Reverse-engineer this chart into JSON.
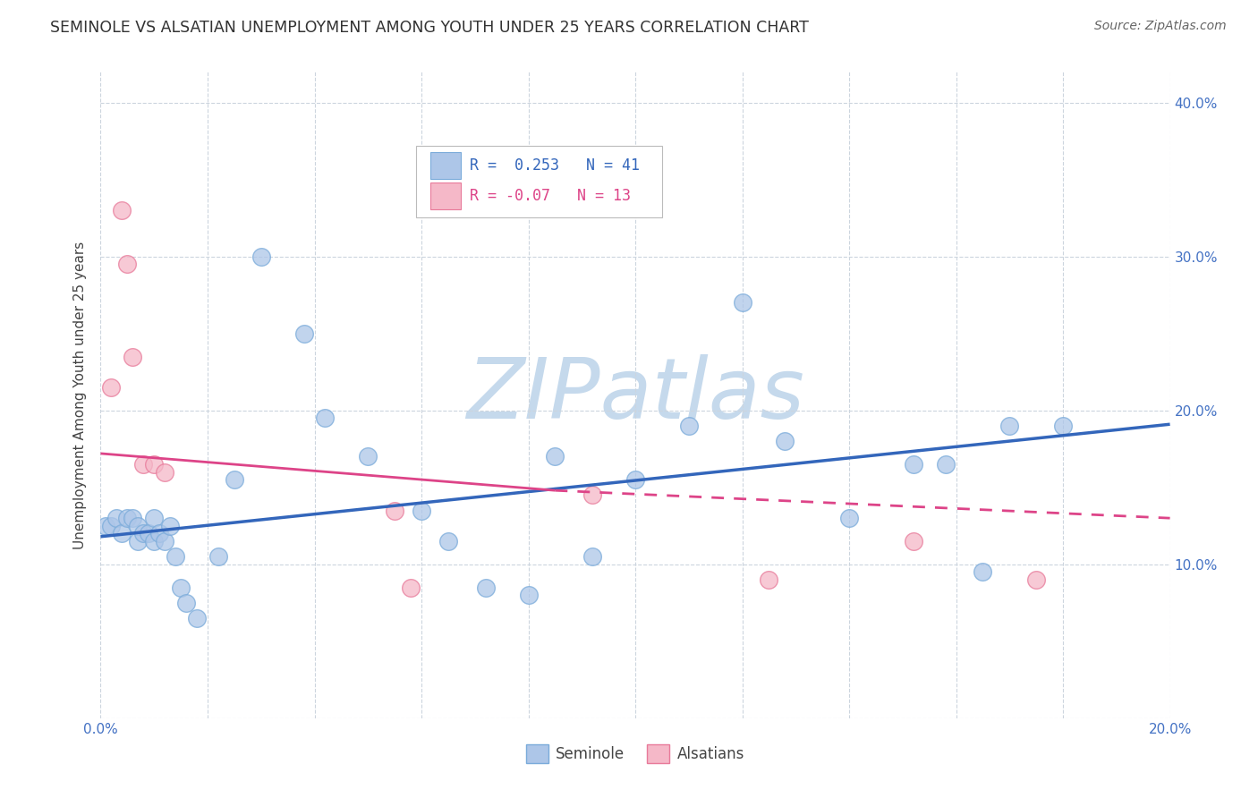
{
  "title": "SEMINOLE VS ALSATIAN UNEMPLOYMENT AMONG YOUTH UNDER 25 YEARS CORRELATION CHART",
  "source": "Source: ZipAtlas.com",
  "ylabel": "Unemployment Among Youth under 25 years",
  "xlim": [
    0.0,
    0.2
  ],
  "ylim": [
    0.0,
    0.42
  ],
  "xticks": [
    0.0,
    0.02,
    0.04,
    0.06,
    0.08,
    0.1,
    0.12,
    0.14,
    0.16,
    0.18,
    0.2
  ],
  "yticks": [
    0.0,
    0.1,
    0.2,
    0.3,
    0.4
  ],
  "seminole_x": [
    0.001,
    0.002,
    0.003,
    0.004,
    0.005,
    0.006,
    0.007,
    0.007,
    0.008,
    0.009,
    0.01,
    0.01,
    0.011,
    0.012,
    0.013,
    0.014,
    0.015,
    0.016,
    0.018,
    0.022,
    0.025,
    0.03,
    0.038,
    0.042,
    0.05,
    0.06,
    0.065,
    0.072,
    0.08,
    0.085,
    0.092,
    0.1,
    0.11,
    0.12,
    0.128,
    0.14,
    0.152,
    0.158,
    0.165,
    0.17,
    0.18
  ],
  "seminole_y": [
    0.125,
    0.125,
    0.13,
    0.12,
    0.13,
    0.13,
    0.115,
    0.125,
    0.12,
    0.12,
    0.13,
    0.115,
    0.12,
    0.115,
    0.125,
    0.105,
    0.085,
    0.075,
    0.065,
    0.105,
    0.155,
    0.3,
    0.25,
    0.195,
    0.17,
    0.135,
    0.115,
    0.085,
    0.08,
    0.17,
    0.105,
    0.155,
    0.19,
    0.27,
    0.18,
    0.13,
    0.165,
    0.165,
    0.095,
    0.19,
    0.19
  ],
  "alsatian_x": [
    0.002,
    0.004,
    0.005,
    0.006,
    0.008,
    0.01,
    0.012,
    0.055,
    0.058,
    0.092,
    0.125,
    0.152,
    0.175
  ],
  "alsatian_y": [
    0.215,
    0.33,
    0.295,
    0.235,
    0.165,
    0.165,
    0.16,
    0.135,
    0.085,
    0.145,
    0.09,
    0.115,
    0.09
  ],
  "trend_blue_x0": 0.0,
  "trend_blue_y0": 0.118,
  "trend_blue_x1": 0.2,
  "trend_blue_y1": 0.191,
  "trend_pink_x0": 0.0,
  "trend_pink_y0": 0.172,
  "trend_pink_x1": 0.2,
  "trend_pink_y1": 0.13,
  "trend_pink_dash_x0": 0.085,
  "trend_pink_dash_y0": 0.148,
  "trend_pink_dash_x1": 0.2,
  "trend_pink_dash_y1": 0.1,
  "seminole_color": "#adc6e8",
  "seminole_edge": "#7aabda",
  "alsatian_color": "#f5b8c8",
  "alsatian_edge": "#e87a9a",
  "trend_seminole_color": "#3366bb",
  "trend_alsatian_solid_color": "#dd4488",
  "trend_alsatian_dash_color": "#dd4488",
  "R_seminole": 0.253,
  "N_seminole": 41,
  "R_alsatian": -0.07,
  "N_alsatian": 13,
  "watermark": "ZIPatlas",
  "watermark_color": "#c5d9ec",
  "background_color": "#ffffff",
  "grid_color": "#ccd5de",
  "title_fontsize": 12.5,
  "axis_label_fontsize": 11,
  "tick_fontsize": 11,
  "legend_fontsize": 12
}
